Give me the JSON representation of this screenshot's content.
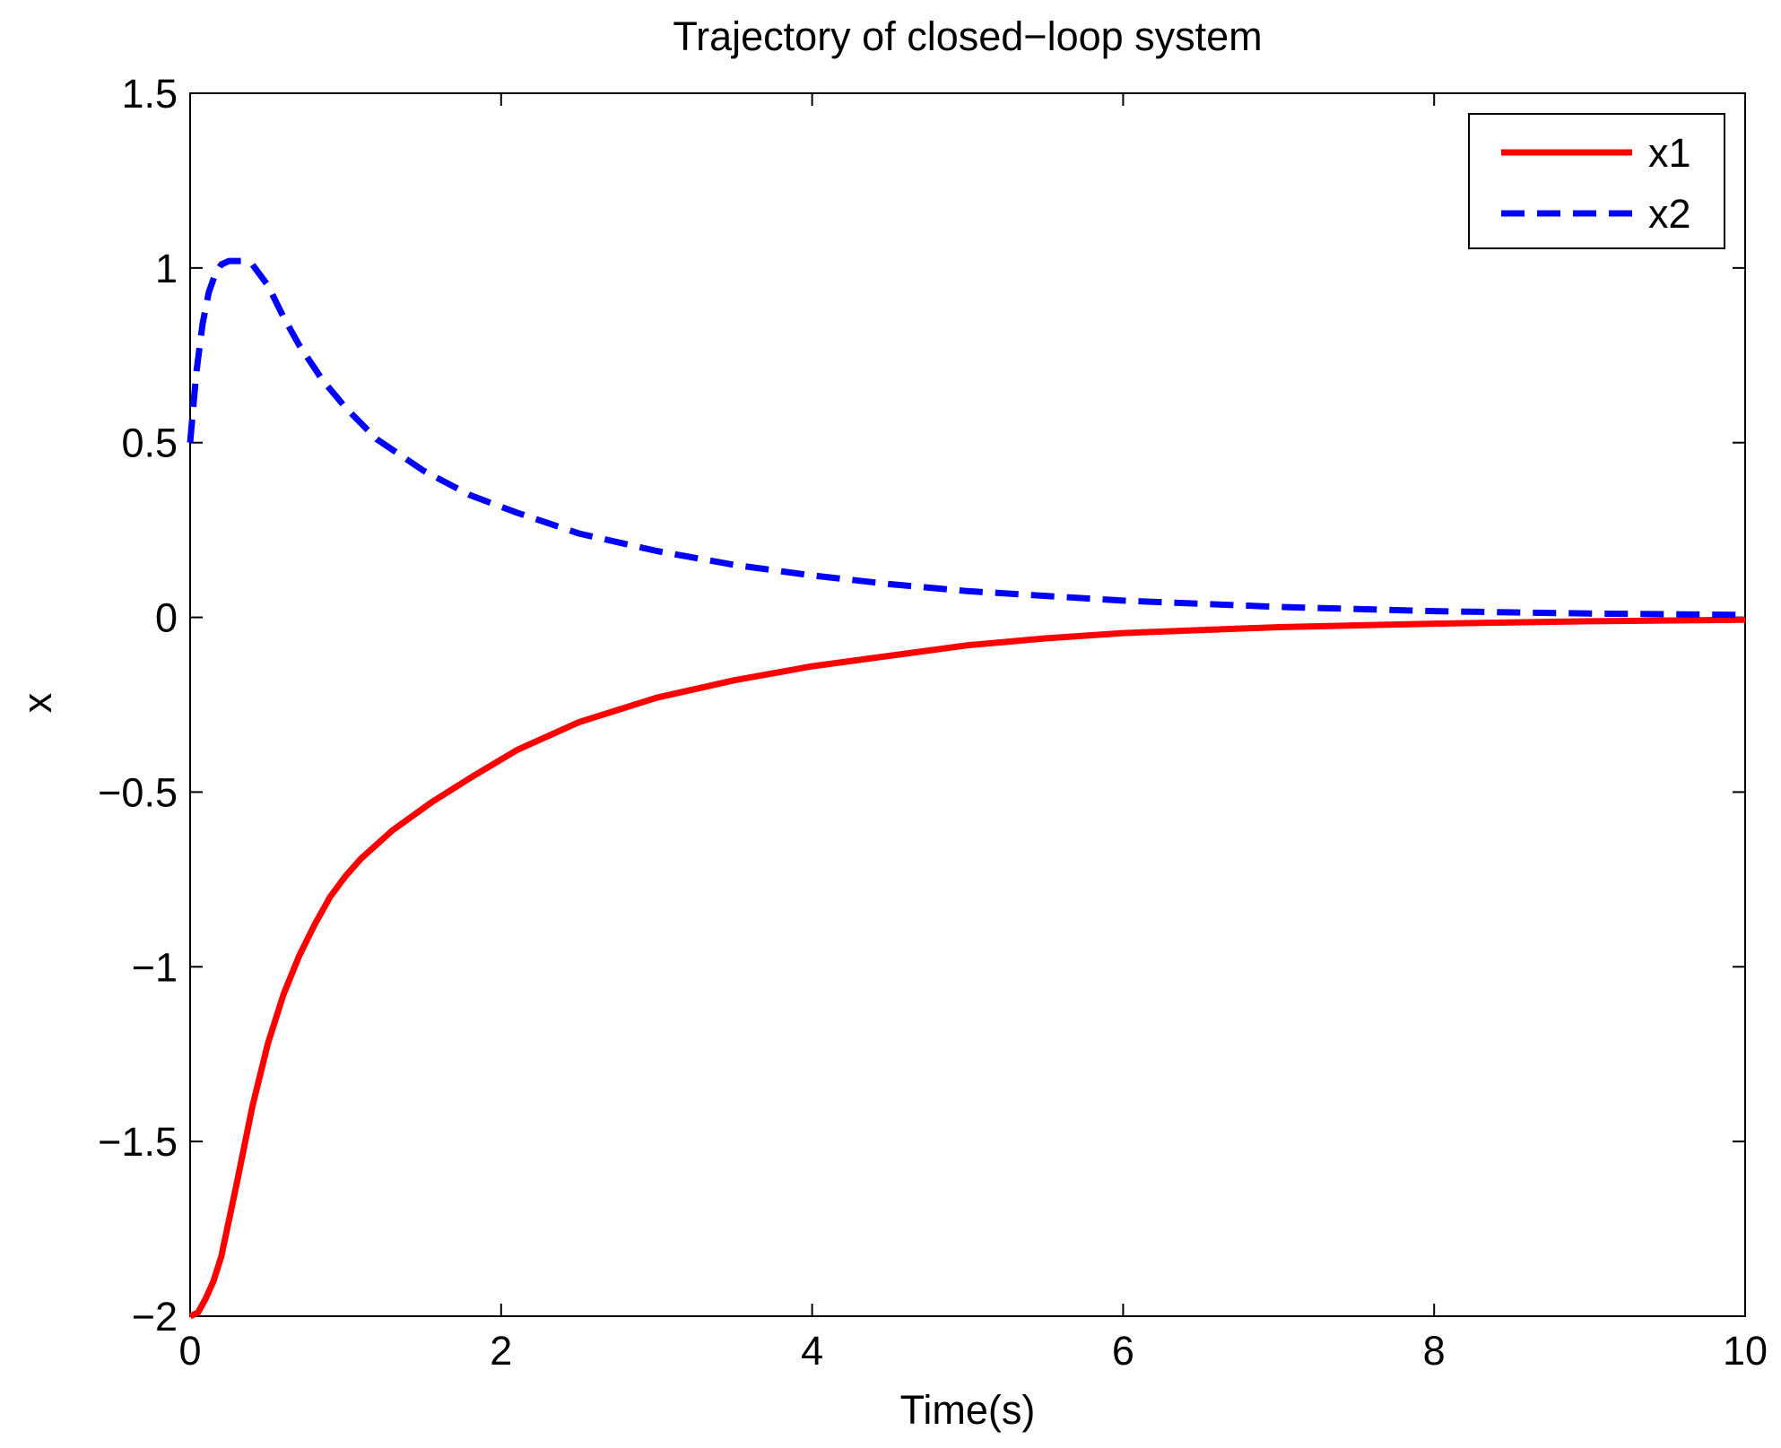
{
  "chart_data": {
    "type": "line",
    "title": "Trajectory of closed−loop system",
    "xlabel": "Time(s)",
    "ylabel": "x",
    "xlim": [
      0,
      10
    ],
    "ylim": [
      -2,
      1.5
    ],
    "xticks": [
      0,
      2,
      4,
      6,
      8,
      10
    ],
    "xtick_labels": [
      "0",
      "2",
      "4",
      "6",
      "8",
      "10"
    ],
    "yticks": [
      -2,
      -1.5,
      -1,
      -0.5,
      0,
      0.5,
      1,
      1.5
    ],
    "ytick_labels": [
      "−2",
      "−1.5",
      "−1",
      "−0.5",
      "0",
      "0.5",
      "1",
      "1.5"
    ],
    "grid": false,
    "legend_position": "top-right",
    "series": [
      {
        "name": "x1",
        "color": "#ff0000",
        "style": "solid",
        "x": [
          0,
          0.05,
          0.1,
          0.15,
          0.2,
          0.3,
          0.4,
          0.5,
          0.6,
          0.7,
          0.8,
          0.9,
          1.0,
          1.1,
          1.3,
          1.55,
          1.8,
          2.1,
          2.5,
          3.0,
          3.5,
          4.0,
          4.5,
          5.0,
          5.5,
          6.0,
          7.0,
          8.0,
          9.0,
          10.0
        ],
        "y": [
          -2.0,
          -1.99,
          -1.95,
          -1.9,
          -1.83,
          -1.62,
          -1.4,
          -1.22,
          -1.08,
          -0.97,
          -0.88,
          -0.8,
          -0.74,
          -0.69,
          -0.61,
          -0.53,
          -0.46,
          -0.38,
          -0.3,
          -0.23,
          -0.18,
          -0.14,
          -0.11,
          -0.08,
          -0.06,
          -0.045,
          -0.028,
          -0.018,
          -0.011,
          -0.007
        ]
      },
      {
        "name": "x2",
        "color": "#0000ff",
        "style": "dashed",
        "x": [
          0,
          0.04,
          0.08,
          0.12,
          0.16,
          0.2,
          0.25,
          0.3,
          0.35,
          0.4,
          0.5,
          0.6,
          0.7,
          0.85,
          1.0,
          1.2,
          1.5,
          1.8,
          2.1,
          2.5,
          3.0,
          3.5,
          4.0,
          4.5,
          5.0,
          6.0,
          7.0,
          8.0,
          9.0,
          10.0
        ],
        "y": [
          0.5,
          0.7,
          0.84,
          0.93,
          0.98,
          1.01,
          1.02,
          1.02,
          1.02,
          1.01,
          0.95,
          0.86,
          0.78,
          0.68,
          0.6,
          0.51,
          0.42,
          0.35,
          0.3,
          0.24,
          0.19,
          0.15,
          0.12,
          0.095,
          0.075,
          0.048,
          0.03,
          0.018,
          0.011,
          0.007
        ]
      }
    ]
  }
}
